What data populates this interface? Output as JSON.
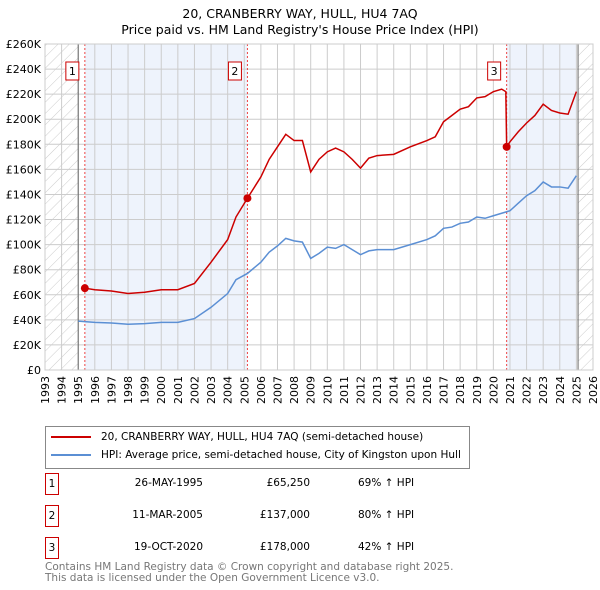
{
  "title": "20, CRANBERRY WAY, HULL, HU4 7AQ",
  "subtitle": "Price paid vs. HM Land Registry's House Price Index (HPI)",
  "chart_data": {
    "type": "line",
    "xlim": [
      1993,
      2026
    ],
    "ylim": [
      0,
      260000
    ],
    "x_ticks": [
      1993,
      1994,
      1995,
      1996,
      1997,
      1998,
      1999,
      2000,
      2001,
      2002,
      2003,
      2004,
      2005,
      2006,
      2007,
      2008,
      2009,
      2010,
      2011,
      2012,
      2013,
      2014,
      2015,
      2016,
      2017,
      2018,
      2019,
      2020,
      2021,
      2022,
      2023,
      2024,
      2025,
      2026
    ],
    "y_ticks": [
      0,
      20000,
      40000,
      60000,
      80000,
      100000,
      120000,
      140000,
      160000,
      180000,
      200000,
      220000,
      240000,
      260000
    ],
    "y_tick_labels": [
      "£0",
      "£20K",
      "£40K",
      "£60K",
      "£80K",
      "£100K",
      "£120K",
      "£140K",
      "£160K",
      "£180K",
      "£200K",
      "£220K",
      "£240K",
      "£260K"
    ],
    "hatched_before": 1995.0,
    "hatched_after": 2025.1,
    "shaded_ranges": [
      [
        1995.4,
        2005.19
      ],
      [
        2020.8,
        2025.0
      ]
    ],
    "series": [
      {
        "name": "20, CRANBERRY WAY, HULL, HU4 7AQ (semi-detached house)",
        "color": "#cc0000",
        "x": [
          1995.4,
          1996,
          1997,
          1998,
          1999,
          2000,
          2001,
          2002,
          2003,
          2004,
          2004.5,
          2005.19,
          2006,
          2006.5,
          2007,
          2007.5,
          2008,
          2008.5,
          2009,
          2009.5,
          2010,
          2010.5,
          2011,
          2011.5,
          2012,
          2012.5,
          2013,
          2014,
          2015,
          2016,
          2016.5,
          2017,
          2017.5,
          2018,
          2018.5,
          2019,
          2019.5,
          2020,
          2020.5,
          2020.75,
          2020.8,
          2021,
          2021.5,
          2022,
          2022.5,
          2023,
          2023.5,
          2024,
          2024.5,
          2025
        ],
        "y": [
          65250,
          64000,
          63000,
          61000,
          62000,
          64000,
          64000,
          69000,
          86000,
          104000,
          122000,
          137000,
          154000,
          168000,
          178000,
          188000,
          183000,
          183000,
          158000,
          168000,
          174000,
          177000,
          174000,
          168000,
          161000,
          169000,
          171000,
          172000,
          178000,
          183000,
          186000,
          198000,
          203000,
          208000,
          210000,
          217000,
          218000,
          222000,
          224000,
          222000,
          178000,
          182000,
          190000,
          197000,
          203000,
          212000,
          207000,
          205000,
          204000,
          222000
        ]
      },
      {
        "name": "HPI: Average price, semi-detached house, City of Kingston upon Hull",
        "color": "#5b8fd4",
        "x": [
          1995,
          1996,
          1997,
          1998,
          1999,
          2000,
          2001,
          2002,
          2003,
          2004,
          2004.5,
          2005.19,
          2006,
          2006.5,
          2007,
          2007.5,
          2008,
          2008.5,
          2009,
          2009.5,
          2010,
          2010.5,
          2011,
          2011.5,
          2012,
          2012.5,
          2013,
          2014,
          2015,
          2016,
          2016.5,
          2017,
          2017.5,
          2018,
          2018.5,
          2019,
          2019.5,
          2020,
          2020.5,
          2021,
          2021.5,
          2022,
          2022.5,
          2023,
          2023.5,
          2024,
          2024.5,
          2025
        ],
        "y": [
          39000,
          38000,
          37500,
          36500,
          37000,
          38000,
          38000,
          41000,
          50000,
          61000,
          72000,
          77000,
          86000,
          94000,
          99000,
          105000,
          103000,
          102000,
          89000,
          93000,
          98000,
          97000,
          100000,
          96000,
          92000,
          95000,
          96000,
          96000,
          100000,
          104000,
          107000,
          113000,
          114000,
          117000,
          118000,
          122000,
          121000,
          123000,
          125000,
          127000,
          133000,
          139000,
          143000,
          150000,
          146000,
          146000,
          145000,
          155000
        ]
      }
    ],
    "sales": [
      {
        "label": "1",
        "x": 1995.4,
        "y": 65250
      },
      {
        "label": "2",
        "x": 2005.19,
        "y": 137000
      },
      {
        "label": "3",
        "x": 2020.8,
        "y": 178000
      }
    ]
  },
  "legend": {
    "property": "20, CRANBERRY WAY, HULL, HU4 7AQ (semi-detached house)",
    "hpi": "HPI: Average price, semi-detached house, City of Kingston upon Hull"
  },
  "transactions": [
    {
      "num": "1",
      "date": "26-MAY-1995",
      "price": "£65,250",
      "hpi": "69% ↑ HPI"
    },
    {
      "num": "2",
      "date": "11-MAR-2005",
      "price": "£137,000",
      "hpi": "80% ↑ HPI"
    },
    {
      "num": "3",
      "date": "19-OCT-2020",
      "price": "£178,000",
      "hpi": "42% ↑ HPI"
    }
  ],
  "footer": [
    "Contains HM Land Registry data © Crown copyright and database right 2025.",
    "This data is licensed under the Open Government Licence v3.0."
  ]
}
